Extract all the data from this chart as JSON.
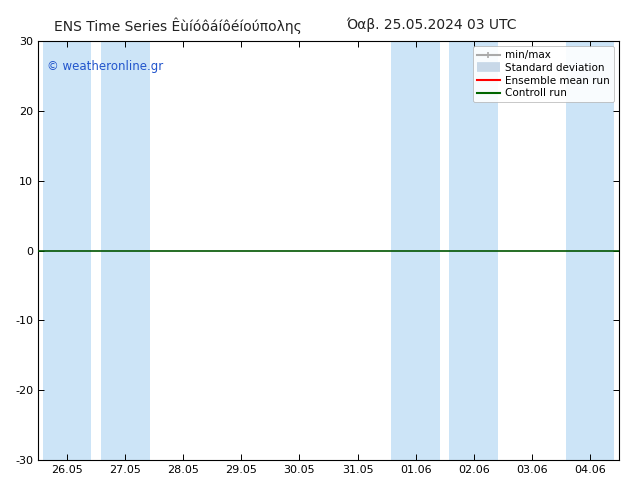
{
  "title_left": "ENS Time Series Êùíóôáíôéíούπολης",
  "title_right": "Όαβ. 25.05.2024 03 UTC",
  "watermark": "© weatheronline.gr",
  "ylabel_vals": [
    30,
    20,
    10,
    0,
    -10,
    -20,
    -30
  ],
  "ylim": [
    -30,
    30
  ],
  "xtick_labels": [
    "26.05",
    "27.05",
    "28.05",
    "29.05",
    "30.05",
    "31.05",
    "01.06",
    "02.06",
    "03.06",
    "04.06"
  ],
  "background_color": "#ffffff",
  "plot_bg_color": "#ffffff",
  "band_color": "#cce4f7",
  "zero_line_color": "#005500",
  "legend_minmax_color": "#aaaaaa",
  "legend_stddev_color": "#bbbbbb",
  "legend_ensemble_color": "#ff0000",
  "legend_control_color": "#006600",
  "title_fontsize": 10,
  "tick_fontsize": 8,
  "legend_fontsize": 7.5,
  "watermark_color": "#2255cc"
}
